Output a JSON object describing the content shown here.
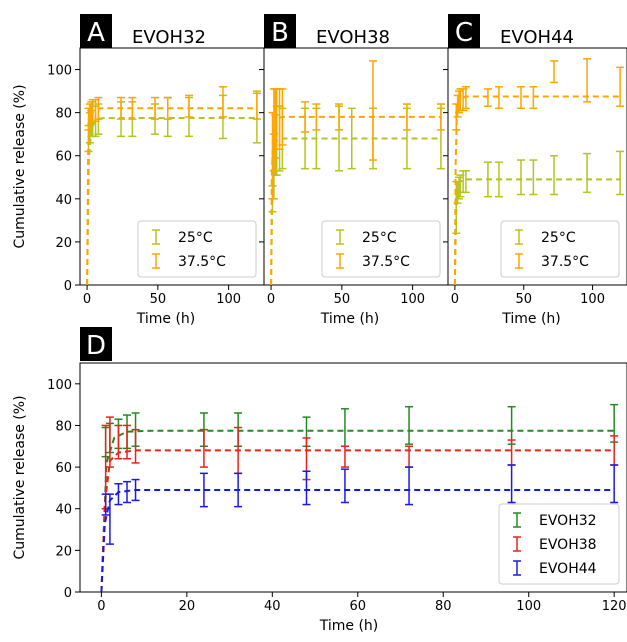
{
  "colors": {
    "c25": "#b5c421",
    "c375": "#ffa500",
    "evoh32": "#228b22",
    "evoh38": "#e8231a",
    "evoh44": "#1a1ae8"
  },
  "chart_data": [
    {
      "panel": "A",
      "title": "EVOH32",
      "type": "line-errorbar",
      "xlabel": "Time (h)",
      "ylabel": "Cumulative release (%)",
      "xlim": [
        -5,
        125
      ],
      "ylim": [
        0,
        110
      ],
      "xticks": [
        0,
        50,
        100
      ],
      "yticks": [
        0,
        20,
        40,
        60,
        80,
        100
      ],
      "legend_position": "lower-right",
      "series": [
        {
          "name": "25°C",
          "color": "#b5c421",
          "fit": [
            [
              0,
              0
            ],
            [
              1.2,
              58
            ],
            [
              3,
              72
            ],
            [
              6,
              77
            ],
            [
              12,
              77.5
            ],
            [
              120,
              77.5
            ]
          ],
          "points": [
            {
              "x": 1,
              "y": 68,
              "e": 6
            },
            {
              "x": 2,
              "y": 73,
              "e": 7
            },
            {
              "x": 3,
              "y": 75,
              "e": 6
            },
            {
              "x": 4,
              "y": 76,
              "e": 7
            },
            {
              "x": 6,
              "y": 76,
              "e": 7
            },
            {
              "x": 8,
              "y": 77,
              "e": 7
            },
            {
              "x": 24,
              "y": 77,
              "e": 8
            },
            {
              "x": 32,
              "y": 77,
              "e": 8
            },
            {
              "x": 48,
              "y": 77,
              "e": 7
            },
            {
              "x": 57,
              "y": 78,
              "e": 9
            },
            {
              "x": 72,
              "y": 78,
              "e": 9
            },
            {
              "x": 96,
              "y": 78,
              "e": 10
            },
            {
              "x": 120,
              "y": 78,
              "e": 12
            }
          ]
        },
        {
          "name": "37.5°C",
          "color": "#ffa500",
          "fit": [
            [
              0,
              0
            ],
            [
              0.8,
              65
            ],
            [
              2,
              78
            ],
            [
              4,
              81
            ],
            [
              10,
              82
            ],
            [
              120,
              82
            ]
          ],
          "points": [
            {
              "x": 1,
              "y": 77,
              "e": 5
            },
            {
              "x": 2,
              "y": 79,
              "e": 5
            },
            {
              "x": 3,
              "y": 80,
              "e": 5
            },
            {
              "x": 4,
              "y": 81,
              "e": 5
            },
            {
              "x": 6,
              "y": 81,
              "e": 5
            },
            {
              "x": 8,
              "y": 82,
              "e": 5
            },
            {
              "x": 24,
              "y": 82,
              "e": 5
            },
            {
              "x": 32,
              "y": 82,
              "e": 5
            },
            {
              "x": 48,
              "y": 82,
              "e": 5
            },
            {
              "x": 57,
              "y": 82,
              "e": 5
            },
            {
              "x": 72,
              "y": 83,
              "e": 5
            },
            {
              "x": 96,
              "y": 85,
              "e": 7
            },
            {
              "x": 120,
              "y": 83,
              "e": 6
            }
          ]
        }
      ]
    },
    {
      "panel": "B",
      "title": "EVOH38",
      "type": "line-errorbar",
      "xlabel": "Time (h)",
      "ylabel": "",
      "xlim": [
        -5,
        125
      ],
      "ylim": [
        0,
        110
      ],
      "xticks": [
        0,
        50,
        100
      ],
      "yticks": [
        0,
        20,
        40,
        60,
        80,
        100
      ],
      "legend_position": "lower-right",
      "series": [
        {
          "name": "25°C",
          "color": "#b5c421",
          "fit": [
            [
              0,
              0
            ],
            [
              0.8,
              40
            ],
            [
              2,
              62
            ],
            [
              4,
              67
            ],
            [
              8,
              68
            ],
            [
              120,
              68
            ]
          ],
          "points": [
            {
              "x": 1,
              "y": 40,
              "e": 6
            },
            {
              "x": 2,
              "y": 55,
              "e": 15
            },
            {
              "x": 3,
              "y": 65,
              "e": 14
            },
            {
              "x": 4,
              "y": 67,
              "e": 16
            },
            {
              "x": 6,
              "y": 68,
              "e": 15
            },
            {
              "x": 8,
              "y": 68,
              "e": 14
            },
            {
              "x": 24,
              "y": 68,
              "e": 14
            },
            {
              "x": 32,
              "y": 68,
              "e": 14
            },
            {
              "x": 48,
              "y": 68,
              "e": 15
            },
            {
              "x": 57,
              "y": 68,
              "e": 14
            },
            {
              "x": 72,
              "y": 68,
              "e": 14
            },
            {
              "x": 96,
              "y": 68,
              "e": 14
            },
            {
              "x": 120,
              "y": 68,
              "e": 14
            }
          ]
        },
        {
          "name": "37.5°C",
          "color": "#ffa500",
          "fit": [
            [
              0,
              0
            ],
            [
              0.5,
              50
            ],
            [
              1.5,
              72
            ],
            [
              3,
              77
            ],
            [
              8,
              78
            ],
            [
              120,
              78
            ]
          ],
          "points": [
            {
              "x": 1,
              "y": 60,
              "e": 20
            },
            {
              "x": 2,
              "y": 72,
              "e": 19
            },
            {
              "x": 3,
              "y": 75,
              "e": 16
            },
            {
              "x": 4,
              "y": 77,
              "e": 14
            },
            {
              "x": 6,
              "y": 77,
              "e": 14
            },
            {
              "x": 8,
              "y": 78,
              "e": 13
            },
            {
              "x": 24,
              "y": 78,
              "e": 7
            },
            {
              "x": 32,
              "y": 78,
              "e": 6
            },
            {
              "x": 48,
              "y": 78,
              "e": 6
            },
            {
              "x": 72,
              "y": 81,
              "e": 23
            },
            {
              "x": 96,
              "y": 78,
              "e": 6
            },
            {
              "x": 120,
              "y": 78,
              "e": 6
            }
          ]
        }
      ]
    },
    {
      "panel": "C",
      "title": "EVOH44",
      "type": "line-errorbar",
      "xlabel": "Time (h)",
      "ylabel": "",
      "xlim": [
        -5,
        125
      ],
      "ylim": [
        0,
        110
      ],
      "xticks": [
        0,
        50,
        100
      ],
      "yticks": [
        0,
        20,
        40,
        60,
        80,
        100
      ],
      "legend_position": "lower-right",
      "series": [
        {
          "name": "25°C",
          "color": "#b5c421",
          "fit": [
            [
              0,
              0
            ],
            [
              0.8,
              32
            ],
            [
              2,
              44
            ],
            [
              4,
              48
            ],
            [
              8,
              49
            ],
            [
              120,
              49
            ]
          ],
          "points": [
            {
              "x": 1,
              "y": 36,
              "e": 12
            },
            {
              "x": 2,
              "y": 43,
              "e": 5
            },
            {
              "x": 3,
              "y": 45,
              "e": 5
            },
            {
              "x": 4,
              "y": 46,
              "e": 5
            },
            {
              "x": 6,
              "y": 48,
              "e": 5
            },
            {
              "x": 8,
              "y": 48,
              "e": 5
            },
            {
              "x": 24,
              "y": 49,
              "e": 8
            },
            {
              "x": 32,
              "y": 49,
              "e": 8
            },
            {
              "x": 48,
              "y": 50,
              "e": 8
            },
            {
              "x": 57,
              "y": 50,
              "e": 8
            },
            {
              "x": 72,
              "y": 51,
              "e": 9
            },
            {
              "x": 96,
              "y": 52,
              "e": 9
            },
            {
              "x": 120,
              "y": 52,
              "e": 10
            }
          ]
        },
        {
          "name": "37.5°C",
          "color": "#ffa500",
          "fit": [
            [
              0,
              0
            ],
            [
              0.5,
              55
            ],
            [
              1.5,
              80
            ],
            [
              3,
              86
            ],
            [
              8,
              87.5
            ],
            [
              120,
              87.5
            ]
          ],
          "points": [
            {
              "x": 1,
              "y": 78,
              "e": 6
            },
            {
              "x": 2,
              "y": 83,
              "e": 5
            },
            {
              "x": 3,
              "y": 85,
              "e": 5
            },
            {
              "x": 4,
              "y": 86,
              "e": 5
            },
            {
              "x": 6,
              "y": 86,
              "e": 5
            },
            {
              "x": 8,
              "y": 87,
              "e": 5
            },
            {
              "x": 24,
              "y": 87,
              "e": 4
            },
            {
              "x": 32,
              "y": 87,
              "e": 5
            },
            {
              "x": 48,
              "y": 87,
              "e": 5
            },
            {
              "x": 57,
              "y": 87,
              "e": 5
            },
            {
              "x": 72,
              "y": 99,
              "e": 5
            },
            {
              "x": 96,
              "y": 95,
              "e": 10
            },
            {
              "x": 120,
              "y": 92,
              "e": 9
            }
          ]
        }
      ]
    },
    {
      "panel": "D",
      "title": "",
      "type": "line-errorbar",
      "xlabel": "Time (h)",
      "ylabel": "Cumulative release (%)",
      "xlim": [
        -5,
        123
      ],
      "ylim": [
        0,
        110
      ],
      "xticks": [
        0,
        20,
        40,
        60,
        80,
        100,
        120
      ],
      "yticks": [
        0,
        20,
        40,
        60,
        80,
        100
      ],
      "legend_position": "lower-right",
      "series": [
        {
          "name": "EVOH32",
          "color": "#228b22",
          "fit": [
            [
              0,
              0
            ],
            [
              1.2,
              62
            ],
            [
              3,
              74
            ],
            [
              6,
              77
            ],
            [
              12,
              77.5
            ],
            [
              120,
              77.5
            ]
          ],
          "points": [
            {
              "x": 1,
              "y": 72,
              "e": 7
            },
            {
              "x": 2,
              "y": 74,
              "e": 7
            },
            {
              "x": 4,
              "y": 76,
              "e": 7
            },
            {
              "x": 6,
              "y": 77,
              "e": 8
            },
            {
              "x": 8,
              "y": 78,
              "e": 8
            },
            {
              "x": 24,
              "y": 78,
              "e": 8
            },
            {
              "x": 32,
              "y": 78,
              "e": 8
            },
            {
              "x": 48,
              "y": 77,
              "e": 7
            },
            {
              "x": 57,
              "y": 79,
              "e": 9
            },
            {
              "x": 72,
              "y": 80,
              "e": 9
            },
            {
              "x": 96,
              "y": 80,
              "e": 9
            },
            {
              "x": 120,
              "y": 81,
              "e": 9
            }
          ]
        },
        {
          "name": "EVOH38",
          "color": "#e8231a",
          "fit": [
            [
              0,
              0
            ],
            [
              0.8,
              42
            ],
            [
              2,
              63
            ],
            [
              4,
              67
            ],
            [
              8,
              68
            ],
            [
              120,
              68
            ]
          ],
          "points": [
            {
              "x": 1,
              "y": 60,
              "e": 20
            },
            {
              "x": 2,
              "y": 72,
              "e": 12
            },
            {
              "x": 4,
              "y": 72,
              "e": 8
            },
            {
              "x": 6,
              "y": 72,
              "e": 8
            },
            {
              "x": 8,
              "y": 70,
              "e": 8
            },
            {
              "x": 24,
              "y": 69,
              "e": 9
            },
            {
              "x": 32,
              "y": 68,
              "e": 11
            },
            {
              "x": 48,
              "y": 64,
              "e": 10
            },
            {
              "x": 57,
              "y": 65,
              "e": 5
            },
            {
              "x": 72,
              "y": 65,
              "e": 5
            },
            {
              "x": 96,
              "y": 67,
              "e": 6
            },
            {
              "x": 120,
              "y": 68,
              "e": 7
            }
          ]
        },
        {
          "name": "EVOH44",
          "color": "#1a1ae8",
          "fit": [
            [
              0,
              0
            ],
            [
              0.8,
              33
            ],
            [
              2,
              44
            ],
            [
              4,
              48
            ],
            [
              8,
              49
            ],
            [
              120,
              49
            ]
          ],
          "points": [
            {
              "x": 1,
              "y": 42,
              "e": 5
            },
            {
              "x": 2,
              "y": 35,
              "e": 12
            },
            {
              "x": 4,
              "y": 47,
              "e": 5
            },
            {
              "x": 6,
              "y": 48,
              "e": 5
            },
            {
              "x": 8,
              "y": 49,
              "e": 5
            },
            {
              "x": 24,
              "y": 49,
              "e": 8
            },
            {
              "x": 32,
              "y": 49,
              "e": 8
            },
            {
              "x": 48,
              "y": 50,
              "e": 8
            },
            {
              "x": 57,
              "y": 51,
              "e": 8
            },
            {
              "x": 72,
              "y": 51,
              "e": 9
            },
            {
              "x": 96,
              "y": 52,
              "e": 9
            },
            {
              "x": 120,
              "y": 52,
              "e": 9
            }
          ]
        }
      ]
    }
  ]
}
